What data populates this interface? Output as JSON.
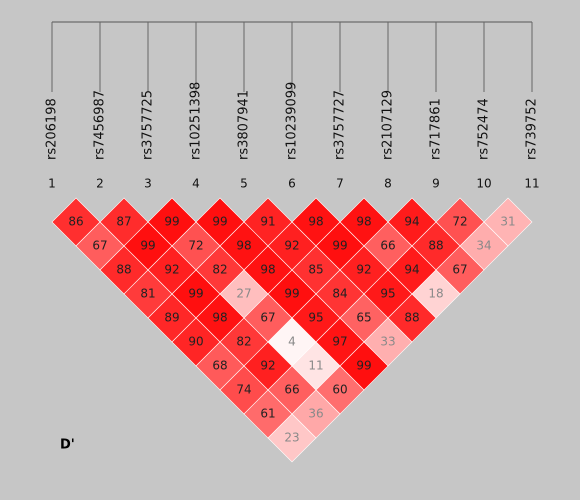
{
  "chart_data": {
    "type": "ld_heatmap",
    "measure_label": "D'",
    "markers": [
      "rs206198",
      "rs7456987",
      "rs3757725",
      "rs10251398",
      "rs3807941",
      "rs10239099",
      "rs3757727",
      "rs2107129",
      "rs717861",
      "rs752474",
      "rs739752"
    ],
    "marker_numbers": [
      1,
      2,
      3,
      4,
      5,
      6,
      7,
      8,
      9,
      10,
      11
    ],
    "color": "#ff0000",
    "values": [
      [
        86,
        87,
        99,
        99,
        91,
        98,
        98,
        94,
        72,
        31
      ],
      [
        67,
        99,
        72,
        98,
        92,
        99,
        66,
        88,
        34
      ],
      [
        88,
        92,
        82,
        98,
        85,
        92,
        94,
        67
      ],
      [
        81,
        99,
        27,
        99,
        84,
        95,
        18
      ],
      [
        89,
        98,
        67,
        95,
        65,
        88
      ],
      [
        90,
        82,
        4,
        97,
        33
      ],
      [
        68,
        92,
        11,
        99
      ],
      [
        74,
        66,
        60
      ],
      [
        61,
        36
      ],
      [
        23
      ]
    ]
  }
}
